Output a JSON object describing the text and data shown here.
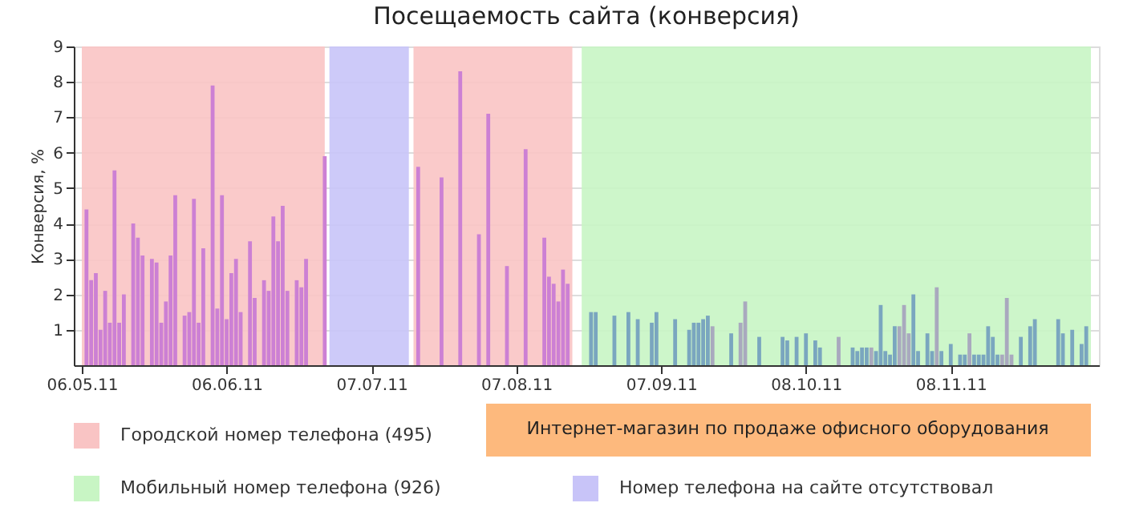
{
  "chart_data": {
    "type": "bar",
    "title": "Посещаемость сайта (конверсия)",
    "ylabel": "Конверсия, %",
    "xlim": [
      "2011-05-06",
      "2011-12-08"
    ],
    "xticks": [
      {
        "value": "2011-05-06",
        "label": "06.05.11"
      },
      {
        "value": "2011-06-06",
        "label": "06.06.11"
      },
      {
        "value": "2011-07-07",
        "label": "07.07.11"
      },
      {
        "value": "2011-08-07",
        "label": "07.08.11"
      },
      {
        "value": "2011-09-07",
        "label": "07.09.11"
      },
      {
        "value": "2011-10-08",
        "label": "08.10.11"
      },
      {
        "value": "2011-11-08",
        "label": "08.11.11"
      }
    ],
    "ylim": [
      0,
      9
    ],
    "yticks": [
      1,
      2,
      3,
      4,
      5,
      6,
      7,
      8,
      9
    ],
    "grid": "y",
    "legend": "bottom",
    "series": [
      {
        "color": "#cc80d4",
        "x": [
          "2011-05-07",
          "2011-05-08",
          "2011-05-09",
          "2011-05-10",
          "2011-05-11",
          "2011-05-12",
          "2011-05-13",
          "2011-05-14",
          "2011-05-15",
          "2011-05-17",
          "2011-05-18",
          "2011-05-19",
          "2011-05-21",
          "2011-05-22",
          "2011-05-23",
          "2011-05-24",
          "2011-05-25",
          "2011-05-26",
          "2011-05-28",
          "2011-05-29",
          "2011-05-30",
          "2011-05-31",
          "2011-06-01",
          "2011-06-03",
          "2011-06-04",
          "2011-06-05",
          "2011-06-06",
          "2011-06-07",
          "2011-06-08",
          "2011-06-09",
          "2011-06-11",
          "2011-06-12",
          "2011-06-14",
          "2011-06-15",
          "2011-06-16",
          "2011-06-17",
          "2011-06-18",
          "2011-06-19",
          "2011-06-21",
          "2011-06-22",
          "2011-06-23",
          "2011-06-27",
          "2011-07-17",
          "2011-07-22",
          "2011-07-26",
          "2011-07-30",
          "2011-08-01",
          "2011-08-05",
          "2011-08-09",
          "2011-08-13",
          "2011-08-14",
          "2011-08-15",
          "2011-08-16",
          "2011-08-17",
          "2011-08-18"
        ],
        "values": [
          4.4,
          2.4,
          2.6,
          1.0,
          2.1,
          1.2,
          5.5,
          1.2,
          2.0,
          4.0,
          3.6,
          3.1,
          3.0,
          2.9,
          1.2,
          1.8,
          3.1,
          4.8,
          1.4,
          1.5,
          4.7,
          1.2,
          3.3,
          7.9,
          1.6,
          4.8,
          1.3,
          2.6,
          3.0,
          1.5,
          3.5,
          1.9,
          2.4,
          2.1,
          4.2,
          3.5,
          4.5,
          2.1,
          2.4,
          2.2,
          3.0,
          5.9,
          5.6,
          5.3,
          8.3,
          3.7,
          7.1,
          2.8,
          6.1,
          3.6,
          2.5,
          2.3,
          1.8,
          2.7,
          2.3
        ]
      },
      {
        "color": "#7aa6bf",
        "x": [
          "2011-08-23",
          "2011-08-24",
          "2011-08-28",
          "2011-08-31",
          "2011-09-02",
          "2011-09-05",
          "2011-09-06",
          "2011-09-10",
          "2011-09-13",
          "2011-09-14",
          "2011-09-15",
          "2011-09-16",
          "2011-09-17",
          "2011-09-22",
          "2011-09-28",
          "2011-10-03",
          "2011-10-04",
          "2011-10-06",
          "2011-10-08",
          "2011-10-10",
          "2011-10-11",
          "2011-10-18",
          "2011-10-19",
          "2011-10-20",
          "2011-10-21",
          "2011-10-23",
          "2011-10-24",
          "2011-10-25",
          "2011-10-26",
          "2011-10-27",
          "2011-10-31",
          "2011-11-01",
          "2011-11-03",
          "2011-11-04",
          "2011-11-06",
          "2011-11-08",
          "2011-11-10",
          "2011-11-11",
          "2011-11-13",
          "2011-11-14",
          "2011-11-15",
          "2011-11-16",
          "2011-11-17",
          "2011-11-18",
          "2011-11-23",
          "2011-11-25",
          "2011-11-26",
          "2011-12-01",
          "2011-12-02",
          "2011-12-04",
          "2011-12-06",
          "2011-12-07"
        ],
        "values": [
          1.5,
          1.5,
          1.4,
          1.5,
          1.3,
          1.2,
          1.5,
          1.3,
          1.0,
          1.2,
          1.2,
          1.3,
          1.4,
          0.9,
          0.8,
          0.8,
          0.7,
          0.8,
          0.9,
          0.7,
          0.5,
          0.5,
          0.4,
          0.5,
          0.5,
          0.4,
          1.7,
          0.4,
          0.3,
          1.1,
          2.0,
          0.4,
          0.9,
          0.4,
          0.4,
          0.6,
          0.3,
          0.3,
          0.3,
          0.3,
          0.3,
          1.1,
          0.8,
          0.3,
          0.8,
          1.1,
          1.3,
          1.3,
          0.9,
          1.0,
          0.6,
          1.1
        ]
      },
      {
        "color": "#a9a9be",
        "x": [
          "2011-09-18",
          "2011-09-24",
          "2011-09-25",
          "2011-10-15",
          "2011-10-22",
          "2011-10-28",
          "2011-10-29",
          "2011-10-30",
          "2011-11-05",
          "2011-11-12",
          "2011-11-19",
          "2011-11-20",
          "2011-11-21"
        ],
        "values": [
          1.1,
          1.2,
          1.8,
          0.8,
          0.5,
          1.1,
          1.7,
          0.9,
          2.2,
          0.9,
          0.3,
          1.9,
          0.3
        ]
      }
    ],
    "bands": [
      {
        "axis": "x",
        "from": "2011-05-06",
        "to": "2011-06-27",
        "label": "Городской номер телефона (495)",
        "color": "#f9c4c4"
      },
      {
        "axis": "x",
        "from": "2011-06-28",
        "to": "2011-07-15",
        "label": "Номер телефона на сайте отсутствовал",
        "color": "#c8c4f8"
      },
      {
        "axis": "x",
        "from": "2011-07-16",
        "to": "2011-08-19",
        "color": "#f9c4c4"
      },
      {
        "axis": "x",
        "from": "2011-08-21",
        "to": "2011-12-08",
        "label": "Мобильный номер телефона (926)",
        "color": "#c8f5c4"
      }
    ],
    "annotations": [
      "Интернет-магазин по продаже офисного оборудования"
    ]
  }
}
